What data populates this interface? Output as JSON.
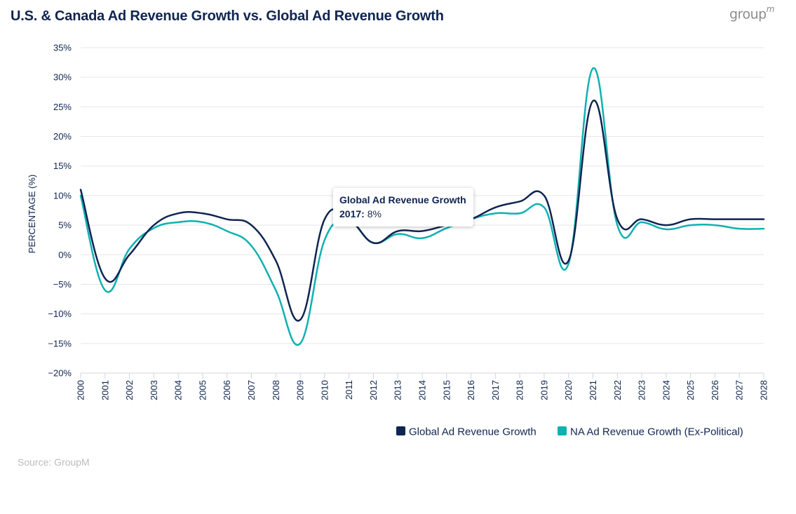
{
  "header": {
    "title": "U.S. & Canada Ad Revenue Growth vs. Global Ad Revenue Growth",
    "logo_text": "group",
    "logo_suffix": "m"
  },
  "footer": {
    "source": "Source: GroupM"
  },
  "tooltip": {
    "series_name": "Global Ad Revenue Growth",
    "year_label": "2017:",
    "value_label": "8%"
  },
  "chart_data": {
    "type": "line",
    "title": "U.S. & Canada Ad Revenue Growth vs. Global Ad Revenue Growth",
    "xlabel": "",
    "ylabel": "PERCENTAGE (%)",
    "ylim": [
      -20,
      35
    ],
    "y_ticks": [
      35,
      30,
      25,
      20,
      15,
      10,
      5,
      0,
      -5,
      -10,
      -15,
      -20
    ],
    "y_tick_labels": [
      "35%",
      "30%",
      "25%",
      "20%",
      "15%",
      "10%",
      "5%",
      "0%",
      "−5%",
      "−10%",
      "−15%",
      "−20%"
    ],
    "grid": true,
    "legend_position": "bottom-right",
    "x": [
      "2000",
      "2001",
      "2002",
      "2003",
      "2004",
      "2005",
      "2006",
      "2007",
      "2008",
      "2009",
      "2010",
      "2011",
      "2012",
      "2013",
      "2014",
      "2015",
      "2016",
      "2017",
      "2018",
      "2019",
      "2020",
      "2021",
      "2022",
      "2023",
      "2024",
      "2025",
      "2026",
      "2027",
      "2028"
    ],
    "series": [
      {
        "name": "Global Ad Revenue Growth",
        "color": "#0f2551",
        "values": [
          11,
          -4,
          0,
          5,
          7,
          7,
          6,
          5,
          -1,
          -11,
          6,
          6,
          2,
          4,
          4,
          5,
          6,
          8,
          9,
          10,
          -1,
          26,
          6,
          6,
          5,
          6,
          6,
          6,
          6
        ]
      },
      {
        "name": "NA Ad Revenue Growth (Ex-Political)",
        "color": "#0fb1b1",
        "values": [
          10,
          -6,
          1,
          4.5,
          5.5,
          5.5,
          4,
          1.5,
          -6,
          -15,
          2.5,
          5.5,
          2,
          3.5,
          2.8,
          4.5,
          6,
          7,
          7,
          8,
          -1.5,
          31.5,
          5,
          5.5,
          4.3,
          5,
          5,
          4.4,
          4.4
        ]
      }
    ]
  }
}
